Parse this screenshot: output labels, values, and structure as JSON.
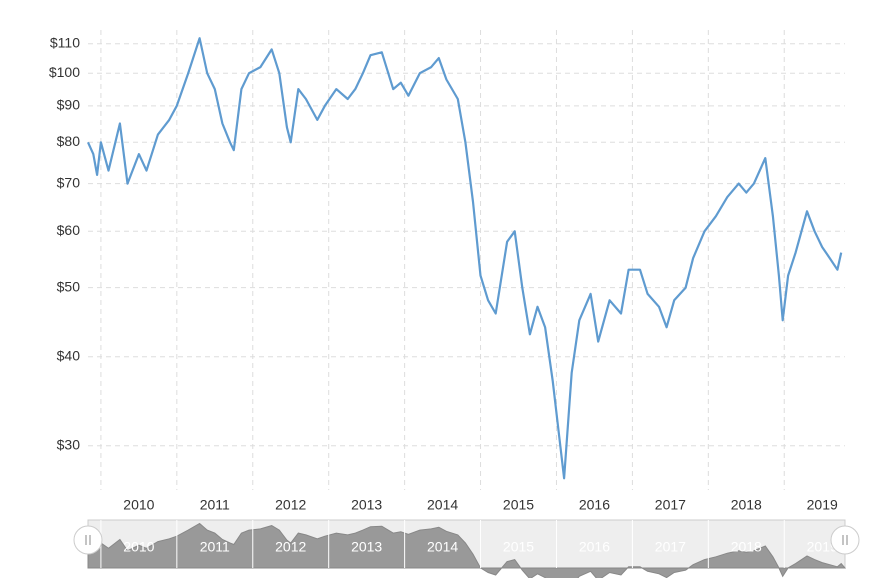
{
  "chart_data": {
    "type": "line",
    "log_scale": true,
    "grid": true,
    "color": "#5f9bd0",
    "x": [
      2009.83,
      2009.9,
      2009.95,
      2010.0,
      2010.1,
      2010.25,
      2010.35,
      2010.5,
      2010.6,
      2010.75,
      2010.9,
      2011.0,
      2011.15,
      2011.3,
      2011.4,
      2011.5,
      2011.6,
      2011.7,
      2011.75,
      2011.85,
      2011.95,
      2012.1,
      2012.25,
      2012.35,
      2012.45,
      2012.5,
      2012.6,
      2012.7,
      2012.85,
      2012.95,
      2013.1,
      2013.25,
      2013.35,
      2013.45,
      2013.55,
      2013.7,
      2013.85,
      2013.95,
      2014.05,
      2014.2,
      2014.35,
      2014.45,
      2014.55,
      2014.7,
      2014.8,
      2014.9,
      2015.0,
      2015.1,
      2015.2,
      2015.35,
      2015.45,
      2015.55,
      2015.65,
      2015.75,
      2015.85,
      2015.95,
      2016.05,
      2016.1,
      2016.2,
      2016.3,
      2016.45,
      2016.55,
      2016.7,
      2016.85,
      2016.95,
      2017.1,
      2017.2,
      2017.35,
      2017.45,
      2017.55,
      2017.7,
      2017.8,
      2017.95,
      2018.1,
      2018.25,
      2018.4,
      2018.5,
      2018.6,
      2018.75,
      2018.85,
      2018.93,
      2018.98,
      2019.05,
      2019.15,
      2019.3,
      2019.4,
      2019.5,
      2019.6,
      2019.7,
      2019.75
    ],
    "values": [
      80,
      77,
      72,
      80,
      73,
      85,
      70,
      77,
      73,
      82,
      86,
      90,
      100,
      112,
      100,
      95,
      85,
      80,
      78,
      95,
      100,
      102,
      108,
      100,
      84,
      80,
      95,
      92,
      86,
      90,
      95,
      92,
      95,
      100,
      106,
      107,
      95,
      97,
      93,
      100,
      102,
      105,
      98,
      92,
      80,
      66,
      52,
      48,
      46,
      58,
      60,
      50,
      43,
      47,
      44,
      37,
      30,
      27,
      38,
      45,
      49,
      42,
      48,
      46,
      53,
      53,
      49,
      47,
      44,
      48,
      50,
      55,
      60,
      63,
      67,
      70,
      68,
      70,
      76,
      63,
      52,
      45,
      52,
      56,
      64,
      60,
      57,
      55,
      53,
      56
    ],
    "xlim": [
      2009.83,
      2019.8
    ],
    "xticks": [
      2010,
      2011,
      2012,
      2013,
      2014,
      2015,
      2016,
      2017,
      2018,
      2019
    ],
    "ylim": [
      26,
      115
    ],
    "yticks": [
      {
        "value": 30,
        "label": "$30"
      },
      {
        "value": 40,
        "label": "$40"
      },
      {
        "value": 50,
        "label": "$50"
      },
      {
        "value": 60,
        "label": "$60"
      },
      {
        "value": 70,
        "label": "$70"
      },
      {
        "value": 80,
        "label": "$80"
      },
      {
        "value": 90,
        "label": "$90"
      },
      {
        "value": 100,
        "label": "$100"
      },
      {
        "value": 110,
        "label": "$110"
      }
    ]
  }
}
